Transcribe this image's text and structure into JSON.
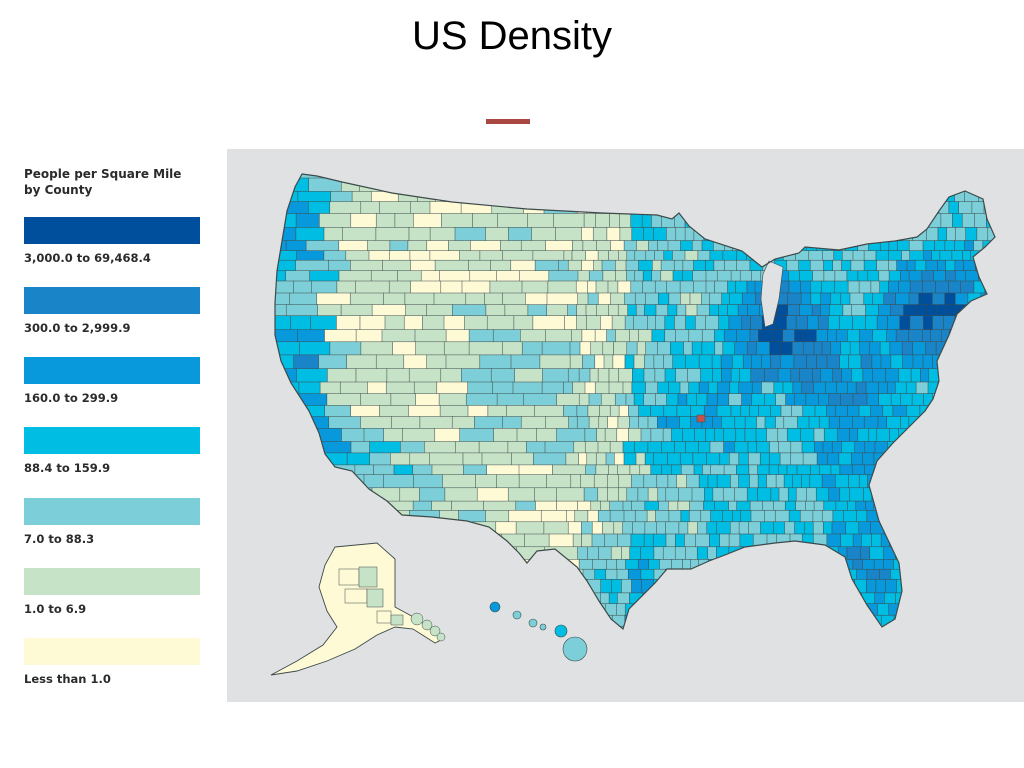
{
  "page": {
    "title": "US Density"
  },
  "legend": {
    "title": "People per Square Mile by County",
    "items": [
      {
        "label": "3,000.0 to 69,468.4",
        "color": "#004f9c"
      },
      {
        "label": "300.0 to 2,999.9",
        "color": "#1a84c8"
      },
      {
        "label": "160.0 to 299.9",
        "color": "#0899dc"
      },
      {
        "label": "88.4 to 159.9",
        "color": "#00bde4"
      },
      {
        "label": "7.0 to 88.3",
        "color": "#7ccfd8"
      },
      {
        "label": "1.0 to 6.9",
        "color": "#c7e3c7"
      },
      {
        "label": "Less than 1.0",
        "color": "#fffad6"
      }
    ]
  },
  "map": {
    "background": "#e0e1e3",
    "outline": "#3c4a4a"
  }
}
